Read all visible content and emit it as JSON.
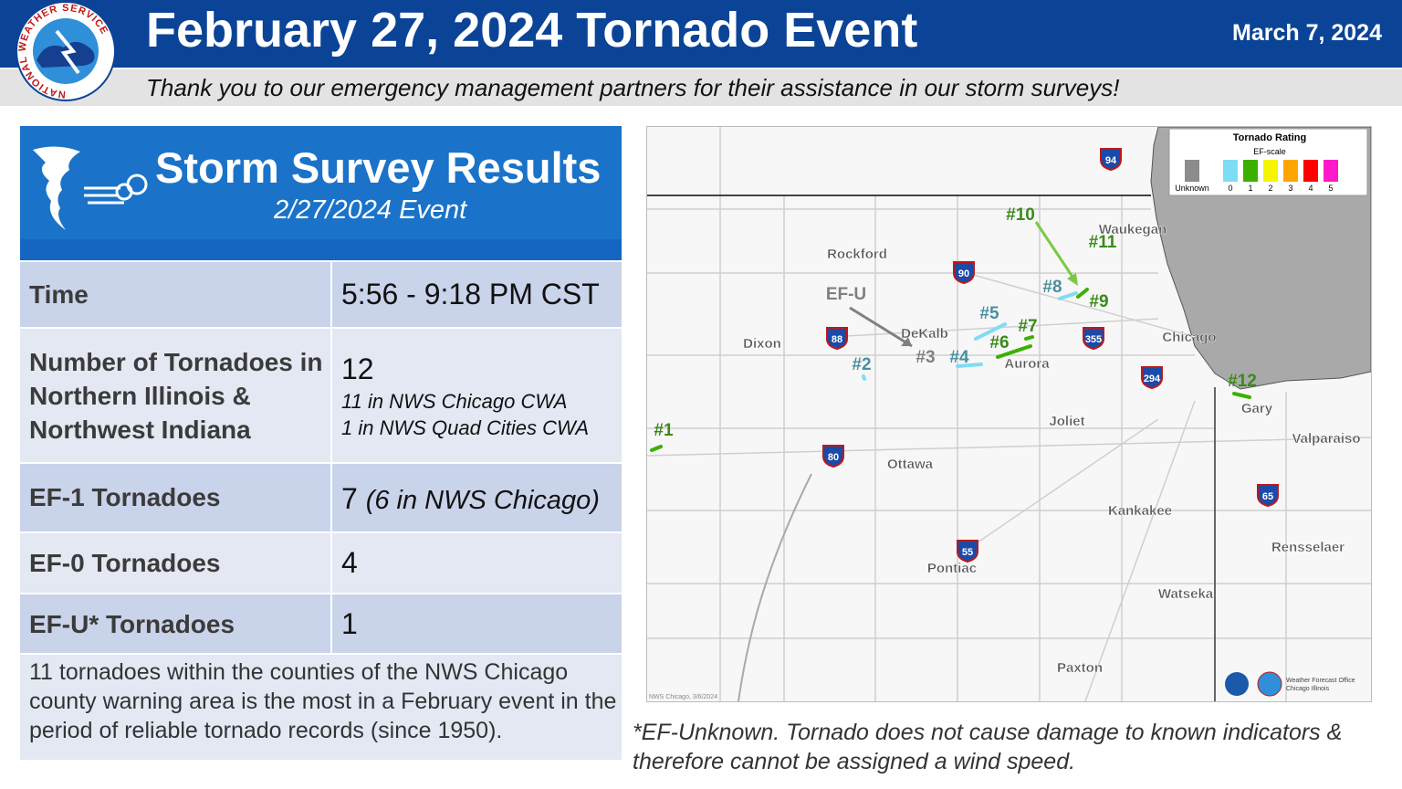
{
  "header": {
    "title": "February 27, 2024 Tornado Event",
    "date": "March 7, 2024",
    "subtitle": "Thank you to our emergency management partners for their assistance in our storm surveys!",
    "logo_text": "NATIONAL WEATHER SERVICE"
  },
  "panel": {
    "title": "Storm Survey Results",
    "subtitle": "2/27/2024 Event"
  },
  "table": {
    "rows": [
      {
        "label": "Time",
        "value": "5:56 - 9:18 PM CST"
      },
      {
        "label": "Number of Tornadoes in Northern Illinois & Northwest Indiana",
        "value": "12",
        "notes": [
          "11 in NWS Chicago CWA",
          "1 in NWS Quad Cities CWA"
        ]
      },
      {
        "label": "EF-1 Tornadoes",
        "value": "7",
        "notes": [
          "(6 in NWS Chicago)"
        ]
      },
      {
        "label": "EF-0 Tornadoes",
        "value": "4"
      },
      {
        "label": "EF-U* Tornadoes",
        "value": "1"
      }
    ],
    "note": "11 tornadoes within the counties of the NWS Chicago county warning area is the most in a February event in the period of reliable tornado records (since 1950)."
  },
  "map": {
    "legend": {
      "title": "Tornado Rating",
      "subtitle": "EF-scale",
      "items": [
        {
          "label": "Unknown",
          "color": "#8c8c8c"
        },
        {
          "label": "0",
          "color": "#7fdcf5"
        },
        {
          "label": "1",
          "color": "#3cb000"
        },
        {
          "label": "2",
          "color": "#f5f500"
        },
        {
          "label": "3",
          "color": "#ffa500"
        },
        {
          "label": "4",
          "color": "#ff0000"
        },
        {
          "label": "5",
          "color": "#ff19c8"
        }
      ]
    },
    "cities": [
      "Rockford",
      "Dixon",
      "DeKalb",
      "Aurora",
      "Chicago",
      "Waukegan",
      "Joliet",
      "Gary",
      "Valparaiso",
      "Ottawa",
      "Kankakee",
      "Pontiac",
      "Rensselaer",
      "Watseka",
      "Paxton"
    ],
    "highways": [
      "94",
      "90",
      "88",
      "355",
      "294",
      "80",
      "55",
      "65"
    ],
    "tornado_labels": [
      {
        "label": "#1",
        "color": "#3a8a1a"
      },
      {
        "label": "#2",
        "color": "#4a8fa0"
      },
      {
        "label": "#3",
        "color": "#808080"
      },
      {
        "label": "#4",
        "color": "#4a8fa0"
      },
      {
        "label": "#5",
        "color": "#4a8fa0"
      },
      {
        "label": "#6",
        "color": "#3a8a1a"
      },
      {
        "label": "#7",
        "color": "#3a8a1a"
      },
      {
        "label": "#8",
        "color": "#4a8fa0"
      },
      {
        "label": "#9",
        "color": "#3a8a1a"
      },
      {
        "label": "#10",
        "color": "#3a8a1a"
      },
      {
        "label": "#11",
        "color": "#3a8a1a"
      },
      {
        "label": "#12",
        "color": "#3a8a1a"
      },
      {
        "label": "EF-U",
        "color": "#808080"
      }
    ],
    "credit": "NWS Chicago, 3/6/2024",
    "office_logo": [
      "Weather Forecast Office",
      "Chicago Illinois"
    ]
  },
  "footnote": "*EF-Unknown. Tornado does not cause damage to known indicators & therefore cannot be assigned a wind speed."
}
